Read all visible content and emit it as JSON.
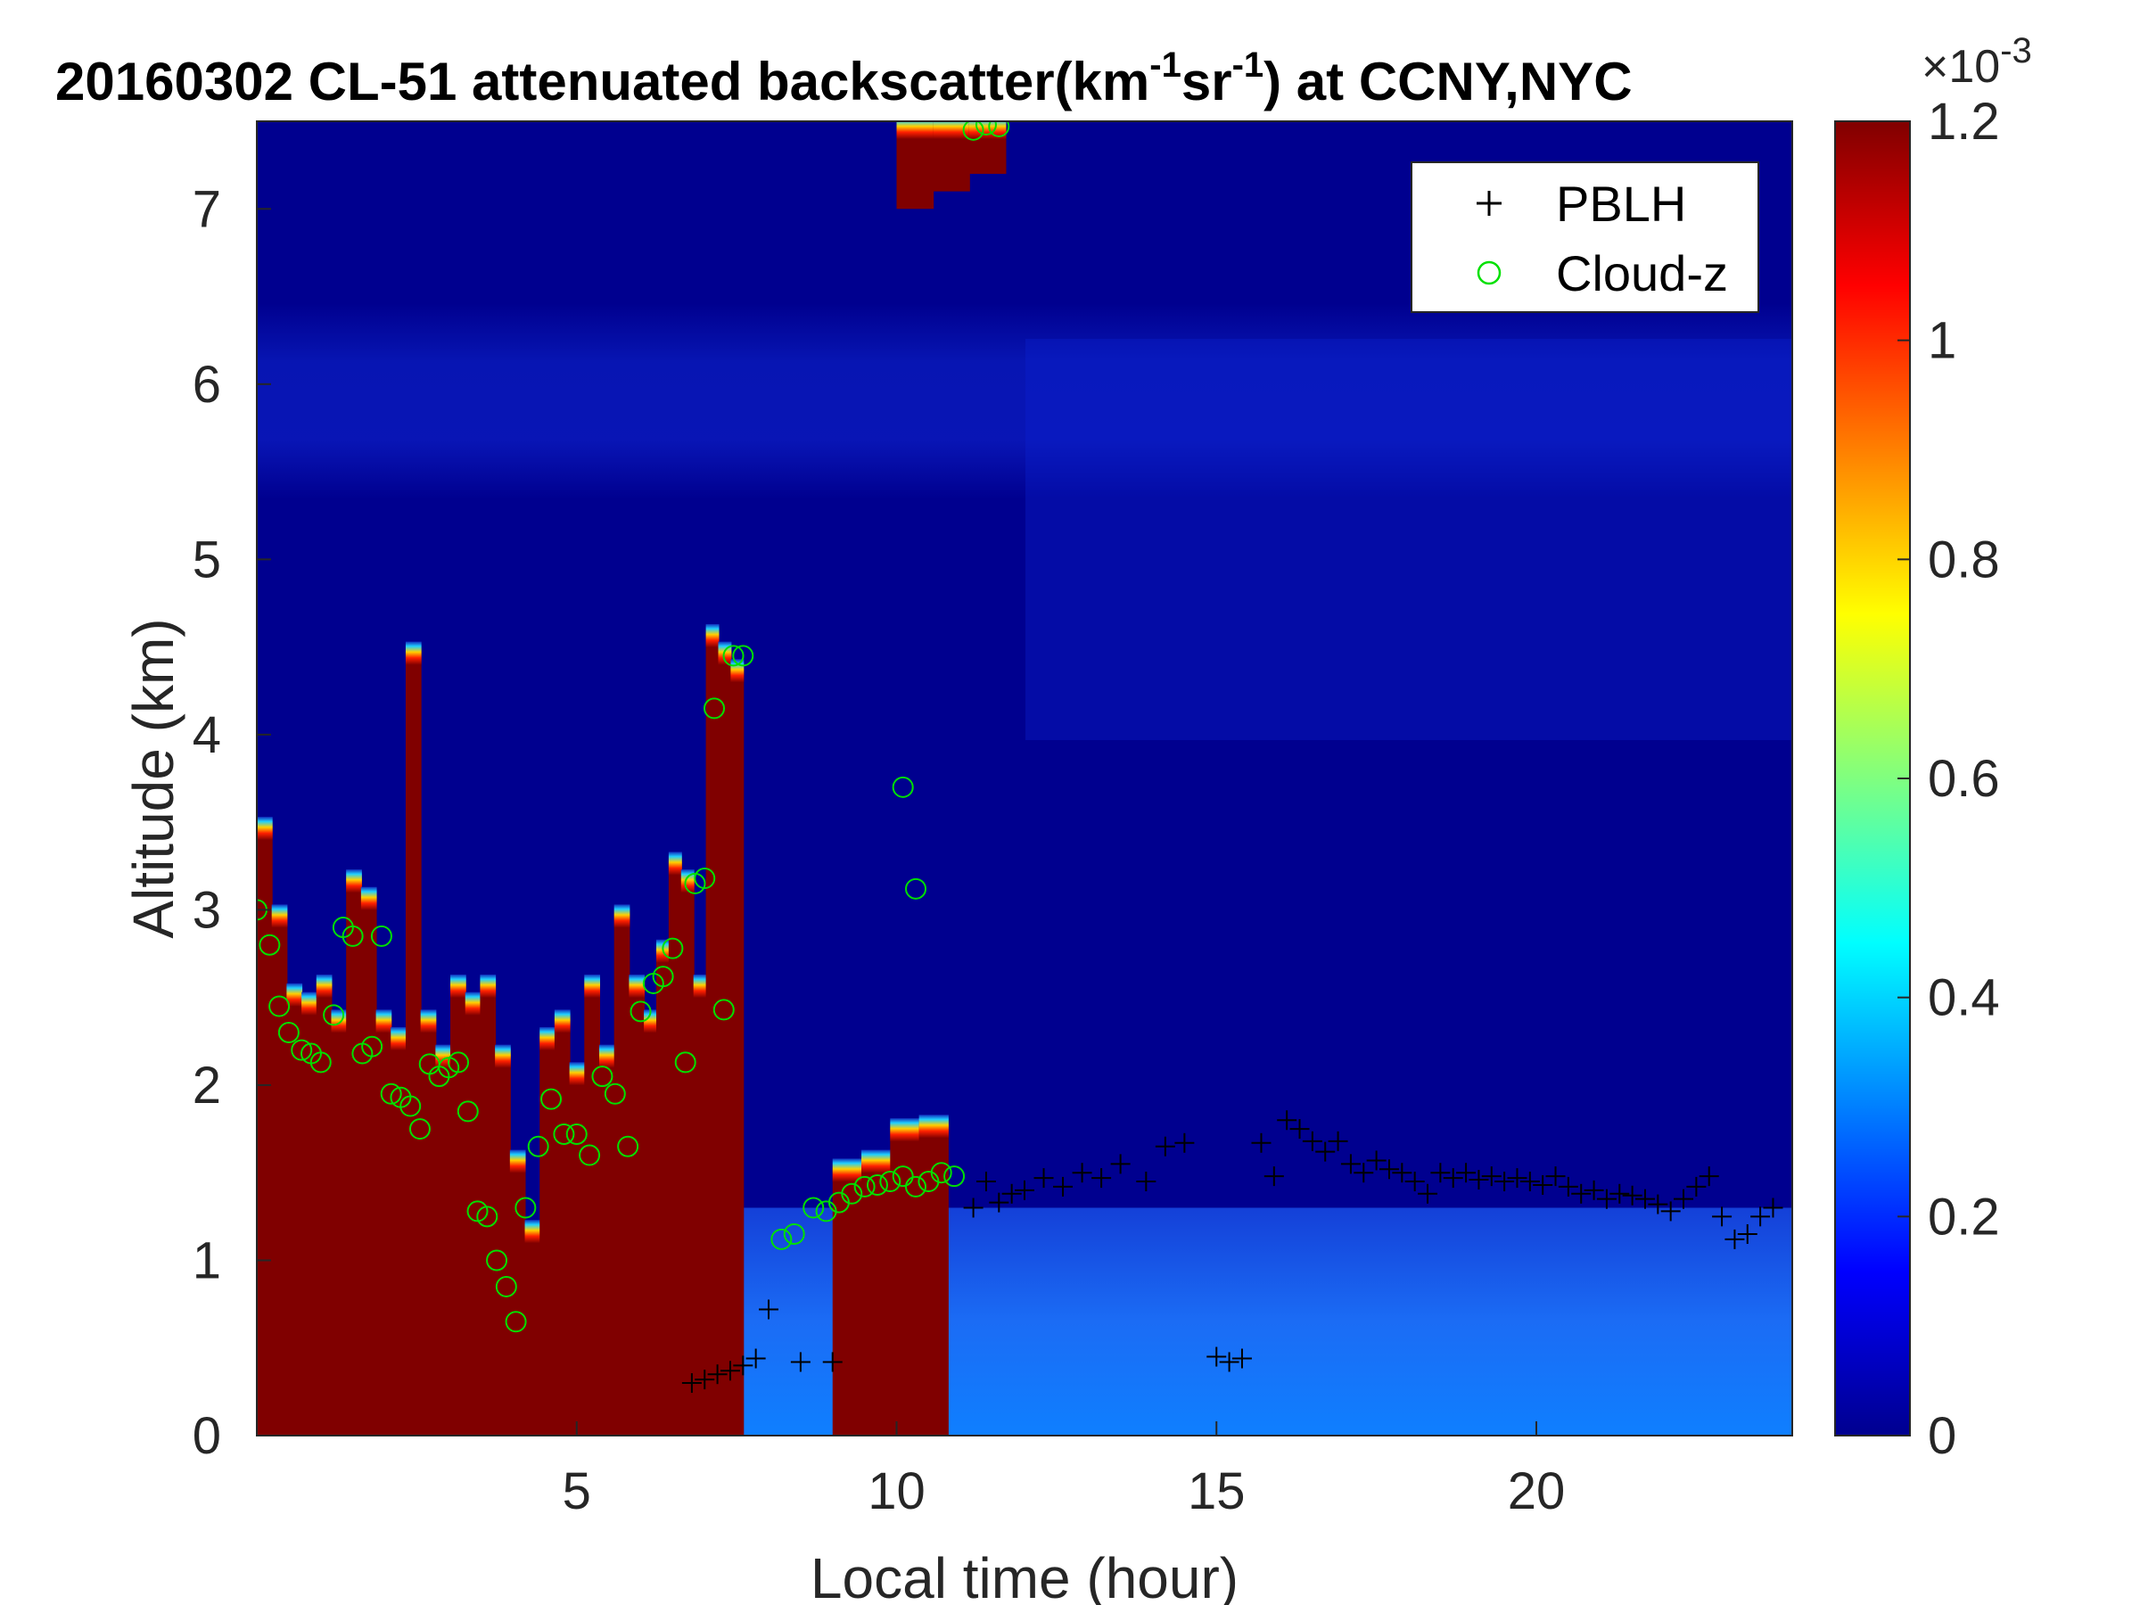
{
  "chart_data": {
    "type": "heatmap",
    "title": {
      "prefix": "20160302  CL-51 attenuated backscatter(km",
      "sup1": "-1",
      "mid": "sr",
      "sup2": "-1",
      "suffix": ") at CCNY,NYC"
    },
    "xlabel": "Local time (hour)",
    "ylabel": "Altitude (km)",
    "xlim": [
      0,
      24
    ],
    "ylim": [
      0,
      7.5
    ],
    "xticks": [
      5,
      10,
      15,
      20
    ],
    "yticks": [
      0,
      1,
      2,
      3,
      4,
      5,
      6,
      7
    ],
    "colorbar": {
      "colormap": "jet",
      "clim": [
        0,
        1.2
      ],
      "ticks": [
        0,
        0.2,
        0.4,
        0.6,
        0.8,
        1,
        1.2
      ],
      "tick_labels": [
        "0",
        "0.2",
        "0.4",
        "0.6",
        "0.8",
        "1",
        "1.2"
      ],
      "exponent_label": "×10",
      "exponent_sup": "-3"
    },
    "legend": {
      "location": "top-right",
      "entries": [
        {
          "label": "PBLH",
          "marker": "+",
          "color": "#000000"
        },
        {
          "label": "Cloud-z",
          "marker": "o",
          "color": "#00e000"
        }
      ]
    },
    "regions": [
      {
        "x": [
          0,
          6.05
        ],
        "y_top": [
          3.5,
          3.0,
          2.55,
          2.5,
          2.6,
          2.4,
          3.2,
          3.1,
          2.4,
          2.3,
          4.5,
          2.4,
          2.2,
          2.6,
          2.5,
          2.6,
          2.2,
          1.6,
          1.2,
          2.3,
          2.4,
          2.1,
          2.6,
          2.2,
          3.0,
          2.6
        ],
        "value": 1.2,
        "label": "lower cloud / precipitation"
      },
      {
        "x": [
          6.05,
          7.6
        ],
        "y_top": [
          2.4,
          2.8,
          3.3,
          3.2,
          2.6,
          4.6,
          4.5,
          4.4
        ],
        "value": 1.2,
        "label": "cloud"
      },
      {
        "x": [
          9.0,
          10.8
        ],
        "y_top": [
          1.55,
          1.6,
          1.78,
          1.8
        ],
        "value": 1.2,
        "label": "cloud"
      },
      {
        "x": [
          10.0,
          11.7
        ],
        "y_top": [
          7.5,
          7.5,
          7.5
        ],
        "y_bottom": [
          7.0,
          7.1,
          7.2
        ],
        "value": 1.2,
        "label": "upper cloud"
      }
    ],
    "series": [
      {
        "name": "PBLH",
        "marker": "+",
        "x": [
          6.8,
          7.0,
          7.2,
          7.4,
          7.6,
          7.8,
          8.0,
          8.5,
          9.0,
          11.2,
          11.4,
          11.6,
          11.8,
          12.0,
          12.3,
          12.6,
          12.9,
          13.2,
          13.5,
          13.9,
          14.2,
          14.5,
          15.0,
          15.2,
          15.4,
          15.7,
          15.9,
          16.1,
          16.3,
          16.5,
          16.7,
          16.9,
          17.1,
          17.3,
          17.5,
          17.7,
          17.9,
          18.1,
          18.3,
          18.5,
          18.7,
          18.9,
          19.1,
          19.3,
          19.5,
          19.7,
          19.9,
          20.1,
          20.3,
          20.5,
          20.7,
          20.9,
          21.1,
          21.3,
          21.5,
          21.7,
          21.9,
          22.1,
          22.3,
          22.5,
          22.7,
          22.9,
          23.1,
          23.3,
          23.5,
          23.7
        ],
        "y": [
          0.3,
          0.32,
          0.35,
          0.37,
          0.4,
          0.44,
          0.72,
          0.42,
          0.42,
          1.3,
          1.45,
          1.33,
          1.38,
          1.4,
          1.47,
          1.42,
          1.5,
          1.47,
          1.55,
          1.45,
          1.65,
          1.67,
          0.45,
          0.42,
          0.44,
          1.67,
          1.48,
          1.8,
          1.75,
          1.68,
          1.62,
          1.68,
          1.55,
          1.5,
          1.57,
          1.52,
          1.5,
          1.45,
          1.38,
          1.5,
          1.47,
          1.5,
          1.46,
          1.48,
          1.45,
          1.47,
          1.45,
          1.43,
          1.48,
          1.42,
          1.38,
          1.4,
          1.35,
          1.38,
          1.37,
          1.35,
          1.32,
          1.28,
          1.35,
          1.42,
          1.48,
          1.25,
          1.12,
          1.15,
          1.25,
          1.3
        ]
      },
      {
        "name": "Cloud-z",
        "marker": "o",
        "x": [
          0.0,
          0.2,
          0.35,
          0.5,
          0.7,
          0.85,
          1.0,
          1.2,
          1.35,
          1.5,
          1.65,
          1.8,
          1.95,
          2.1,
          2.25,
          2.4,
          2.55,
          2.7,
          2.85,
          3.0,
          3.15,
          3.3,
          3.45,
          3.6,
          3.75,
          3.9,
          4.05,
          4.2,
          4.4,
          4.6,
          4.8,
          5.0,
          5.2,
          5.4,
          5.6,
          5.8,
          6.0,
          6.2,
          6.35,
          6.5,
          6.7,
          6.85,
          7.0,
          7.15,
          7.3,
          7.45,
          7.6,
          8.2,
          8.4,
          8.7,
          8.9,
          9.1,
          9.3,
          9.5,
          9.7,
          9.9,
          10.1,
          10.3,
          10.5,
          10.7,
          10.1,
          10.3,
          10.9,
          11.2,
          11.4,
          11.6
        ],
        "y": [
          3.0,
          2.8,
          2.45,
          2.3,
          2.2,
          2.18,
          2.13,
          2.4,
          2.9,
          2.85,
          2.18,
          2.22,
          2.85,
          1.95,
          1.93,
          1.88,
          1.75,
          2.12,
          2.05,
          2.1,
          2.13,
          1.85,
          1.28,
          1.25,
          1.0,
          0.85,
          0.65,
          1.3,
          1.65,
          1.92,
          1.72,
          1.72,
          1.6,
          2.05,
          1.95,
          1.65,
          2.42,
          2.58,
          2.62,
          2.78,
          2.13,
          3.15,
          3.18,
          4.15,
          2.43,
          4.45,
          4.45,
          1.12,
          1.15,
          1.3,
          1.28,
          1.33,
          1.38,
          1.42,
          1.43,
          1.45,
          1.48,
          1.42,
          1.45,
          1.5,
          3.7,
          3.12,
          1.48,
          7.45,
          7.48,
          7.47
        ]
      }
    ]
  }
}
